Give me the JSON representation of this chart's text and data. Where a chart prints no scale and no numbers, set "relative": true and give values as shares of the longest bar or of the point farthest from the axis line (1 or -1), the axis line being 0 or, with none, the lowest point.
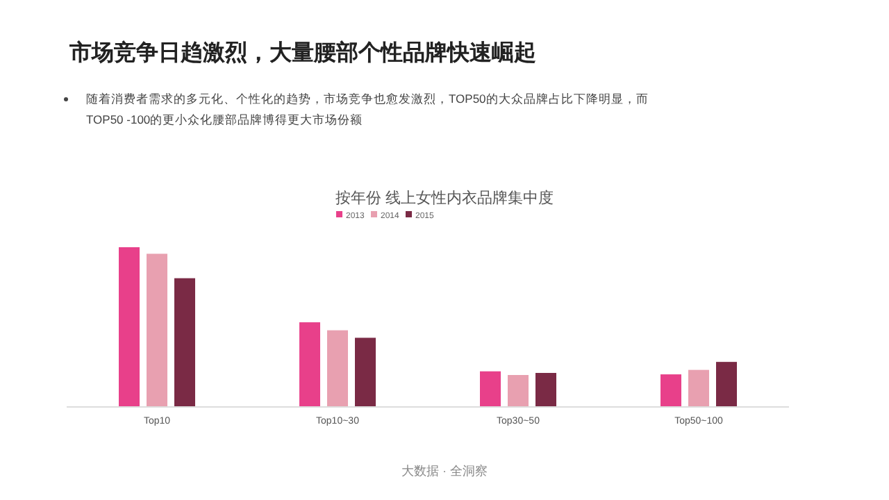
{
  "chart_data": {
    "type": "bar",
    "title": "市场竞争日趋激烈，大量腰部个性品牌快速崛起",
    "subtitle": "按年份 线上女性内衣品牌集中度",
    "annotations": [
      "随着消费者需求的多元化、个性化的趋势，市场竞争也愈发激烈，TOP50的大众品牌占比下降明显，而TOP50 -100的更小众化腰部品牌博得更大市场份额",
      "大数据 · 全洞察"
    ],
    "categories": [
      "Top10",
      "Top10~30",
      "Top30~50",
      "Top50~100"
    ],
    "relative": true,
    "legend": "top",
    "series": [
      {
        "name": "2013",
        "color": "#e8408a",
        "values": [
          1,
          0.53,
          0.223,
          0.204
        ]
      },
      {
        "name": "2014",
        "color": "#e8a0b0",
        "values": [
          0.959,
          0.48,
          0.2,
          0.232
        ]
      },
      {
        "name": "2015",
        "color": "#7a2a45",
        "values": [
          0.806,
          0.433,
          0.213,
          0.282
        ]
      }
    ]
  }
}
